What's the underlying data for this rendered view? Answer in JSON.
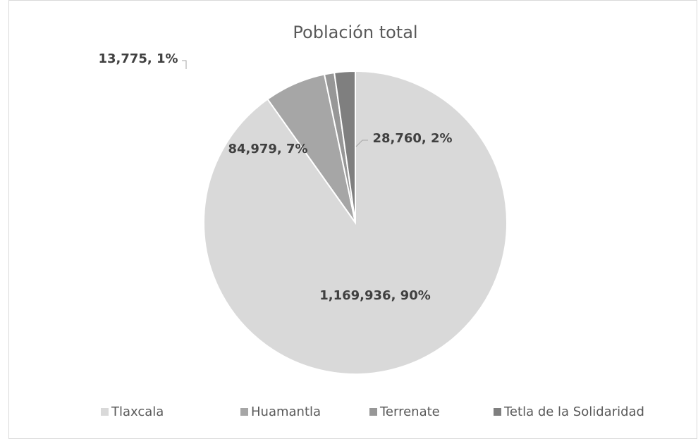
{
  "chart_data": {
    "type": "pie",
    "title": "Población total",
    "categories": [
      "Tlaxcala",
      "Huamantla",
      "Terrenate",
      "Tetla de la Solidaridad"
    ],
    "values": [
      1169936,
      84979,
      13775,
      28760
    ],
    "value_labels": [
      "1,169,936, 90%",
      "84,979, 7%",
      "13,775, 1%",
      "28,760, 2%"
    ],
    "colors": [
      "#d9d9d9",
      "#a6a6a6",
      "#979797",
      "#7f7f7f"
    ],
    "legend": "bottom"
  }
}
